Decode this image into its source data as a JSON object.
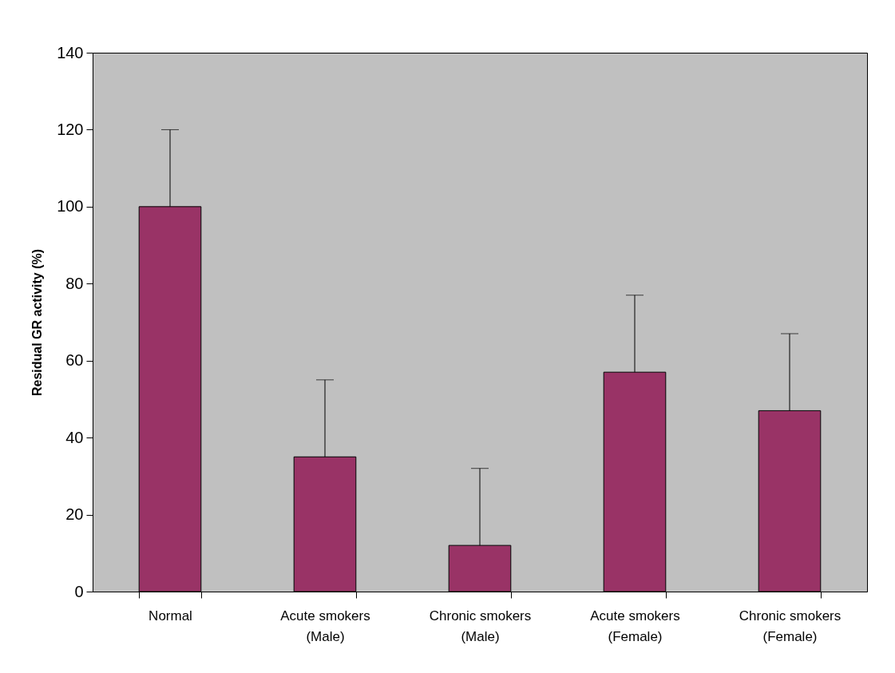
{
  "chart_data": {
    "type": "bar",
    "ylabel": "Residual GR activity (%)",
    "categories": [
      "Normal",
      "Acute smokers\n(Male)",
      "Chronic smokers\n(Male)",
      "Acute smokers\n(Female)",
      "Chronic smokers\n(Female)"
    ],
    "values": [
      100,
      35,
      12,
      57,
      47
    ],
    "errors": [
      [
        100,
        120
      ],
      [
        35,
        55
      ],
      [
        12,
        32
      ],
      [
        57,
        77
      ],
      [
        47,
        67
      ]
    ],
    "color": "#993366",
    "ylim": [
      0,
      140
    ],
    "yticks": [
      0,
      20,
      40,
      60,
      80,
      100,
      120,
      140
    ],
    "grid": false
  }
}
